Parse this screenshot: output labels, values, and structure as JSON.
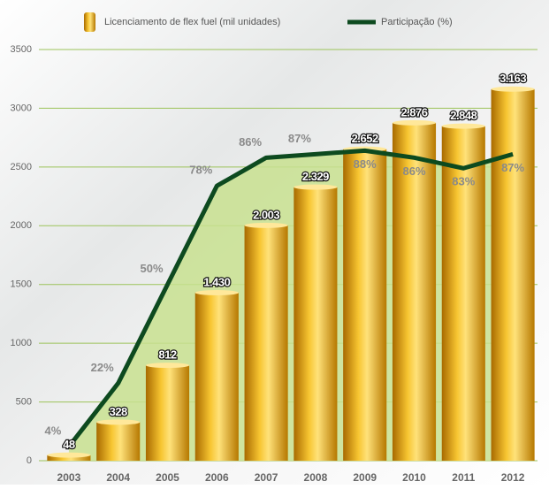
{
  "chart_data": {
    "type": "bar",
    "categories": [
      "2003",
      "2004",
      "2005",
      "2006",
      "2007",
      "2008",
      "2009",
      "2010",
      "2011",
      "2012"
    ],
    "series": [
      {
        "name": "Licenciamento de flex fuel (mil unidades)",
        "color": "#e0a100",
        "values": [
          48,
          328,
          812,
          1430,
          2003,
          2329,
          2652,
          2876,
          2848,
          3163
        ],
        "value_labels": [
          "48",
          "328",
          "812",
          "1.430",
          "2.003",
          "2.329",
          "2.652",
          "2.876",
          "2.848",
          "3.163"
        ]
      },
      {
        "name": "Participação (%)",
        "color": "#0d4a1f",
        "axis": "y2",
        "area_color": "#c8e08f",
        "values": [
          4,
          22,
          50,
          78,
          86,
          87,
          88,
          86,
          83,
          87
        ],
        "value_labels": [
          "4%",
          "22%",
          "50%",
          "78%",
          "86%",
          "87%",
          "88%",
          "86%",
          "83%",
          "87%"
        ]
      }
    ],
    "ylim": [
      0,
      3500
    ],
    "yticks": [
      0,
      500,
      1000,
      1500,
      2000,
      2500,
      3000,
      3500
    ],
    "y2lim": [
      0,
      116.7
    ],
    "grid": true
  }
}
